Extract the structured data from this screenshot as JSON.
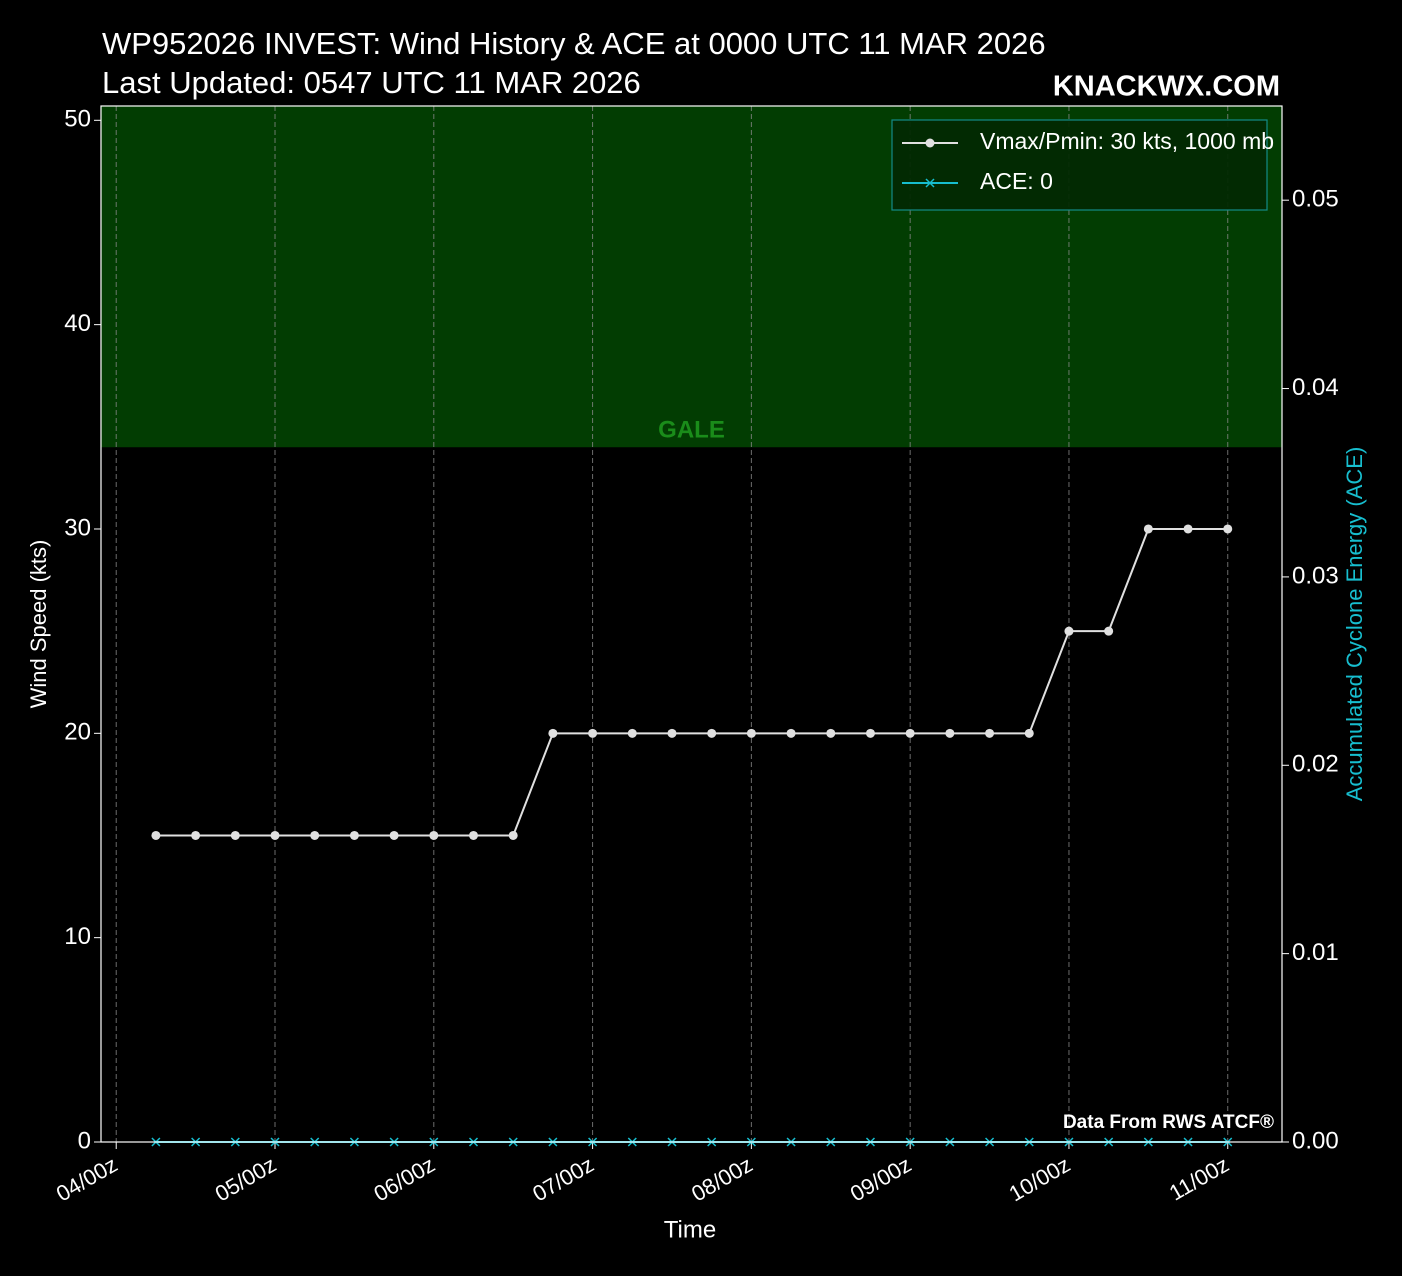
{
  "chart_data": {
    "type": "line",
    "title": "WP952026 INVEST: Wind History & ACE at 0000 UTC 11 MAR 2026",
    "subtitle": "Last Updated: 0547 UTC 11 MAR 2026",
    "brand": "KNACKWX.COM",
    "credit": "Data From RWS ATCF®",
    "xlabel": "Time",
    "ylabel": "Wind Speed (kts)",
    "y2label": "Accumulated Cyclone Energy (ACE)",
    "y2label_color": "#17becf",
    "x": [
      6,
      12,
      18,
      24,
      30,
      36,
      42,
      48,
      54,
      60,
      66,
      72,
      78,
      84,
      90,
      96,
      102,
      108,
      114,
      120,
      126,
      132,
      138,
      144,
      150,
      156,
      162,
      168
    ],
    "series": [
      {
        "name": "Vmax/Pmin: 30 kts, 1000 mb",
        "color": "#e0e0e0",
        "marker": "circle",
        "values": [
          15,
          15,
          15,
          15,
          15,
          15,
          15,
          15,
          15,
          15,
          20,
          20,
          20,
          20,
          20,
          20,
          20,
          20,
          20,
          20,
          20,
          20,
          20,
          25,
          25,
          30,
          30,
          30
        ]
      },
      {
        "name": "ACE: 0",
        "color": "#17becf",
        "marker": "x",
        "axis": "y2",
        "values": [
          0,
          0,
          0,
          0,
          0,
          0,
          0,
          0,
          0,
          0,
          0,
          0,
          0,
          0,
          0,
          0,
          0,
          0,
          0,
          0,
          0,
          0,
          0,
          0,
          0,
          0,
          0,
          0
        ]
      }
    ],
    "xlim": [
      -2.3,
      176.2
    ],
    "xticks": [
      {
        "value": 0,
        "label": "04/00z"
      },
      {
        "value": 24,
        "label": "05/00z"
      },
      {
        "value": 48,
        "label": "06/00z"
      },
      {
        "value": 72,
        "label": "07/00z"
      },
      {
        "value": 96,
        "label": "08/00z"
      },
      {
        "value": 120,
        "label": "09/00z"
      },
      {
        "value": 144,
        "label": "10/00z"
      },
      {
        "value": 168,
        "label": "11/00z"
      }
    ],
    "ylim": [
      0,
      50.7
    ],
    "yticks": [
      0,
      10,
      20,
      30,
      40,
      50
    ],
    "y2lim": [
      0,
      0.055
    ],
    "y2ticks": [
      {
        "value": 0,
        "label": "0.00"
      },
      0.01,
      0.02,
      0.03,
      0.04,
      0.05
    ],
    "bands": [
      {
        "label": "GALE",
        "from": 34,
        "color": "#023d02",
        "label_color": "#1a8c1a"
      }
    ],
    "grid": "x",
    "legend": "upper right"
  }
}
